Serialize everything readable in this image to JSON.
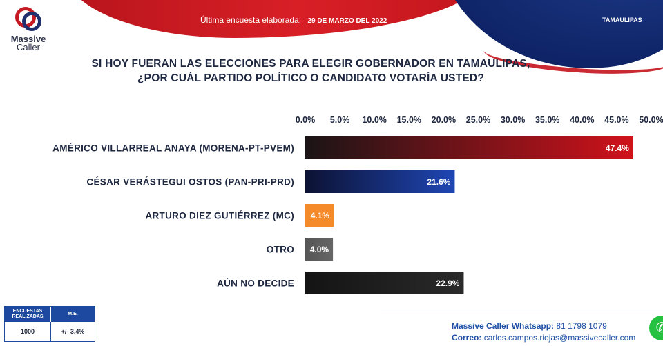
{
  "header": {
    "prefix": "Última encuesta elaborada:",
    "date": "29 DE MARZO DEL 2022",
    "region": "TAMAULIPAS"
  },
  "logo": {
    "name": "Massive",
    "sub": "Caller"
  },
  "question": {
    "line1": "SI HOY FUERAN LAS ELECCIONES PARA ELEGIR GOBERNADOR EN TAMAULIPAS,",
    "line2": "¿POR CUÁL PARTIDO POLÍTICO O CANDIDATO VOTARÍA USTED?"
  },
  "chart_data": {
    "type": "bar",
    "orientation": "horizontal",
    "xlim": [
      0,
      50
    ],
    "ticks": [
      "0.0%",
      "5.0%",
      "10.0%",
      "15.0%",
      "20.0%",
      "25.0%",
      "30.0%",
      "35.0%",
      "40.0%",
      "45.0%",
      "50.0%"
    ],
    "grid": false,
    "legend": "none",
    "categories": [
      "AMÉRICO VILLARREAL ANAYA (MORENA-PT-PVEM)",
      "CÉSAR VERÁSTEGUI OSTOS (PAN-PRI-PRD)",
      "ARTURO DIEZ GUTIÉRREZ (MC)",
      "OTRO",
      "AÚN NO DECIDE"
    ],
    "values": [
      47.4,
      21.6,
      4.1,
      4.0,
      22.9
    ],
    "value_labels": [
      "47.4%",
      "21.6%",
      "4.1%",
      "4.0%",
      "22.9%"
    ],
    "colors": [
      [
        "#1a1416",
        "#d0121b"
      ],
      [
        "#0c1233",
        "#1f46b4"
      ],
      [
        "#f58a2a",
        "#f58a2a"
      ],
      [
        "#555555",
        "#666666"
      ],
      [
        "#141414",
        "#2a2a2a"
      ]
    ]
  },
  "table": {
    "col1_header": "ENCUESTAS REALIZADAS",
    "col2_header": "M.E.",
    "col1_value": "1000",
    "col2_value": "+/- 3.4%"
  },
  "contact": {
    "whatsapp_label": "Massive Caller Whatsapp:",
    "whatsapp_number": "81 1798 1079",
    "email_label": "Correo:",
    "email": "carlos.campos.riojas@massivecaller.com"
  },
  "icons": {
    "whatsapp": "whatsapp-icon"
  }
}
